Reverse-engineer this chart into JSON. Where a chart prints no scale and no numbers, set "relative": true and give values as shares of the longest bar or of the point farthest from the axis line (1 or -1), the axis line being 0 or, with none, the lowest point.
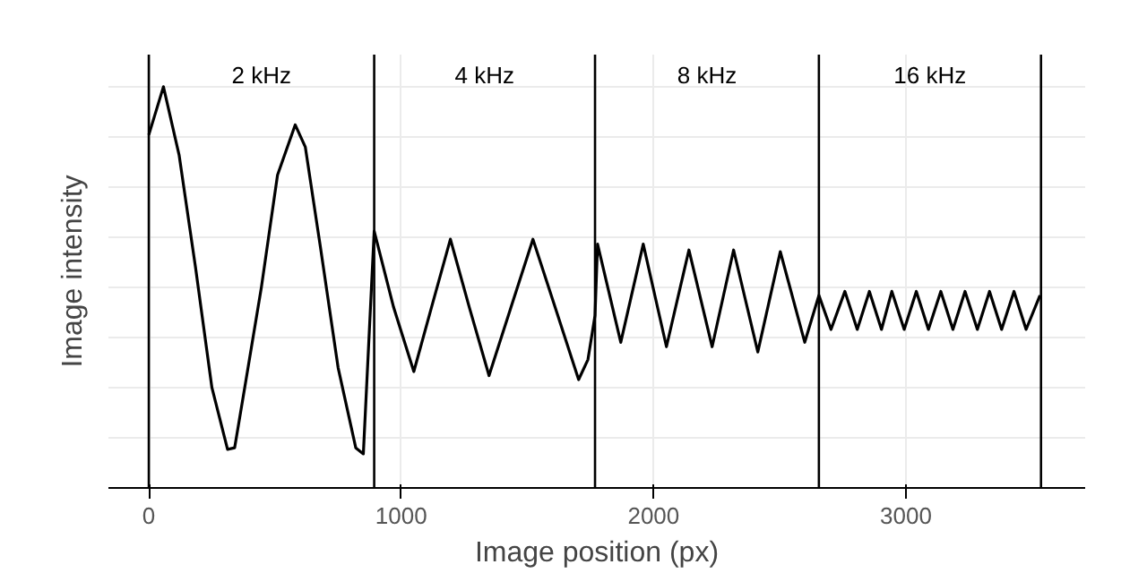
{
  "chart_data": {
    "type": "line",
    "xlabel": "Image position (px)",
    "ylabel": "Image intensity",
    "relative": true,
    "xlim": [
      -160,
      3710
    ],
    "xticks": [
      0,
      1000,
      2000,
      3000
    ],
    "grid": true,
    "tick_labels": "x",
    "ref_lines": [
      {
        "axis": "x",
        "value": 0
      },
      {
        "axis": "x",
        "value": 893
      },
      {
        "axis": "x",
        "value": 1768
      },
      {
        "axis": "x",
        "value": 2655
      },
      {
        "axis": "x",
        "value": 3535
      }
    ],
    "annotations": [
      "2 kHz",
      "4 kHz",
      "8 kHz",
      "16 kHz"
    ],
    "series": [
      {
        "color": "#000000",
        "x": [
          0,
          58,
          120,
          185,
          250,
          312,
          340,
          380,
          446,
          510,
          580,
          620,
          680,
          750,
          820,
          850,
          893,
          970,
          1050,
          1120,
          1195,
          1270,
          1348,
          1435,
          1522,
          1610,
          1703,
          1740,
          1768,
          1778,
          1870,
          1959,
          2051,
          2140,
          2232,
          2317,
          2413,
          2502,
          2599,
          2655,
          2703,
          2758,
          2807,
          2855,
          2903,
          2944,
          2993,
          3041,
          3089,
          3138,
          3186,
          3234,
          3283,
          3331,
          3379,
          3428,
          3476,
          3531
        ],
        "values": [
          0.88,
          1.0,
          0.83,
          0.55,
          0.25,
          0.096,
          0.1,
          0.25,
          0.5,
          0.78,
          0.905,
          0.85,
          0.6,
          0.3,
          0.1,
          0.085,
          0.64,
          0.45,
          0.29,
          0.45,
          0.62,
          0.45,
          0.28,
          0.45,
          0.62,
          0.45,
          0.27,
          0.32,
          0.43,
          0.608,
          0.363,
          0.608,
          0.352,
          0.593,
          0.352,
          0.593,
          0.339,
          0.589,
          0.363,
          0.48,
          0.395,
          0.49,
          0.395,
          0.49,
          0.395,
          0.49,
          0.395,
          0.49,
          0.395,
          0.49,
          0.395,
          0.49,
          0.395,
          0.49,
          0.395,
          0.49,
          0.395,
          0.48
        ]
      }
    ]
  }
}
